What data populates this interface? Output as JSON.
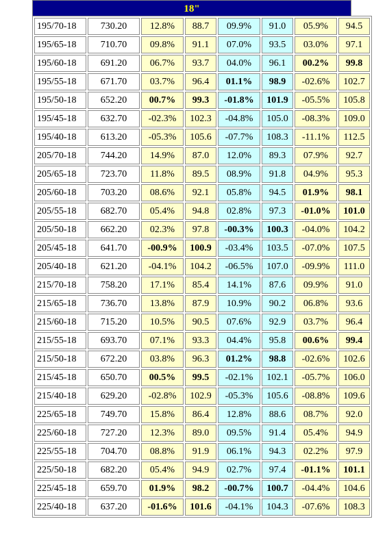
{
  "header": {
    "title": "18\""
  },
  "colors": {
    "title_bg": "#00008b",
    "title_fg": "#ffff00",
    "yellow": "#ffffcc",
    "cyan": "#ccffff",
    "highlight": "#cc0000"
  },
  "rows": [
    {
      "size": "195/70-18",
      "price": "730.20",
      "c1": "12.8%",
      "c2": "88.7",
      "c3": "09.9%",
      "c4": "91.0",
      "c5": "05.9%",
      "c6": "94.5",
      "hl": 0
    },
    {
      "size": "195/65-18",
      "price": "710.70",
      "c1": "09.8%",
      "c2": "91.1",
      "c3": "07.0%",
      "c4": "93.5",
      "c5": "03.0%",
      "c6": "97.1",
      "hl": 0
    },
    {
      "size": "195/60-18",
      "price": "691.20",
      "c1": "06.7%",
      "c2": "93.7",
      "c3": "04.0%",
      "c4": "96.1",
      "c5": "00.2%",
      "c6": "99.8",
      "hl": 3
    },
    {
      "size": "195/55-18",
      "price": "671.70",
      "c1": "03.7%",
      "c2": "96.4",
      "c3": "01.1%",
      "c4": "98.9",
      "c5": "-02.6%",
      "c6": "102.7",
      "hl": 2
    },
    {
      "size": "195/50-18",
      "price": "652.20",
      "c1": "00.7%",
      "c2": "99.3",
      "c3": "-01.8%",
      "c4": "101.9",
      "c5": "-05.5%",
      "c6": "105.8",
      "hl": 12
    },
    {
      "size": "195/45-18",
      "price": "632.70",
      "c1": "-02.3%",
      "c2": "102.3",
      "c3": "-04.8%",
      "c4": "105.0",
      "c5": "-08.3%",
      "c6": "109.0",
      "hl": 0
    },
    {
      "size": "195/40-18",
      "price": "613.20",
      "c1": "-05.3%",
      "c2": "105.6",
      "c3": "-07.7%",
      "c4": "108.3",
      "c5": "-11.1%",
      "c6": "112.5",
      "hl": 0
    },
    {
      "size": "205/70-18",
      "price": "744.20",
      "c1": "14.9%",
      "c2": "87.0",
      "c3": "12.0%",
      "c4": "89.3",
      "c5": "07.9%",
      "c6": "92.7",
      "hl": 0
    },
    {
      "size": "205/65-18",
      "price": "723.70",
      "c1": "11.8%",
      "c2": "89.5",
      "c3": "08.9%",
      "c4": "91.8",
      "c5": "04.9%",
      "c6": "95.3",
      "hl": 0
    },
    {
      "size": "205/60-18",
      "price": "703.20",
      "c1": "08.6%",
      "c2": "92.1",
      "c3": "05.8%",
      "c4": "94.5",
      "c5": "01.9%",
      "c6": "98.1",
      "hl": 3
    },
    {
      "size": "205/55-18",
      "price": "682.70",
      "c1": "05.4%",
      "c2": "94.8",
      "c3": "02.8%",
      "c4": "97.3",
      "c5": "-01.0%",
      "c6": "101.0",
      "hl": 3
    },
    {
      "size": "205/50-18",
      "price": "662.20",
      "c1": "02.3%",
      "c2": "97.8",
      "c3": "-00.3%",
      "c4": "100.3",
      "c5": "-04.0%",
      "c6": "104.2",
      "hl": 2
    },
    {
      "size": "205/45-18",
      "price": "641.70",
      "c1": "-00.9%",
      "c2": "100.9",
      "c3": "-03.4%",
      "c4": "103.5",
      "c5": "-07.0%",
      "c6": "107.5",
      "hl": 1
    },
    {
      "size": "205/40-18",
      "price": "621.20",
      "c1": "-04.1%",
      "c2": "104.2",
      "c3": "-06.5%",
      "c4": "107.0",
      "c5": "-09.9%",
      "c6": "111.0",
      "hl": 0
    },
    {
      "size": "215/70-18",
      "price": "758.20",
      "c1": "17.1%",
      "c2": "85.4",
      "c3": "14.1%",
      "c4": "87.6",
      "c5": "09.9%",
      "c6": "91.0",
      "hl": 0
    },
    {
      "size": "215/65-18",
      "price": "736.70",
      "c1": "13.8%",
      "c2": "87.9",
      "c3": "10.9%",
      "c4": "90.2",
      "c5": "06.8%",
      "c6": "93.6",
      "hl": 0
    },
    {
      "size": "215/60-18",
      "price": "715.20",
      "c1": "10.5%",
      "c2": "90.5",
      "c3": "07.6%",
      "c4": "92.9",
      "c5": "03.7%",
      "c6": "96.4",
      "hl": 0
    },
    {
      "size": "215/55-18",
      "price": "693.70",
      "c1": "07.1%",
      "c2": "93.3",
      "c3": "04.4%",
      "c4": "95.8",
      "c5": "00.6%",
      "c6": "99.4",
      "hl": 3
    },
    {
      "size": "215/50-18",
      "price": "672.20",
      "c1": "03.8%",
      "c2": "96.3",
      "c3": "01.2%",
      "c4": "98.8",
      "c5": "-02.6%",
      "c6": "102.6",
      "hl": 2
    },
    {
      "size": "215/45-18",
      "price": "650.70",
      "c1": "00.5%",
      "c2": "99.5",
      "c3": "-02.1%",
      "c4": "102.1",
      "c5": "-05.7%",
      "c6": "106.0",
      "hl": 1
    },
    {
      "size": "215/40-18",
      "price": "629.20",
      "c1": "-02.8%",
      "c2": "102.9",
      "c3": "-05.3%",
      "c4": "105.6",
      "c5": "-08.8%",
      "c6": "109.6",
      "hl": 0
    },
    {
      "size": "225/65-18",
      "price": "749.70",
      "c1": "15.8%",
      "c2": "86.4",
      "c3": "12.8%",
      "c4": "88.6",
      "c5": "08.7%",
      "c6": "92.0",
      "hl": 0
    },
    {
      "size": "225/60-18",
      "price": "727.20",
      "c1": "12.3%",
      "c2": "89.0",
      "c3": "09.5%",
      "c4": "91.4",
      "c5": "05.4%",
      "c6": "94.9",
      "hl": 0
    },
    {
      "size": "225/55-18",
      "price": "704.70",
      "c1": "08.8%",
      "c2": "91.9",
      "c3": "06.1%",
      "c4": "94.3",
      "c5": "02.2%",
      "c6": "97.9",
      "hl": 0
    },
    {
      "size": "225/50-18",
      "price": "682.20",
      "c1": "05.4%",
      "c2": "94.9",
      "c3": "02.7%",
      "c4": "97.4",
      "c5": "-01.1%",
      "c6": "101.1",
      "hl": 3
    },
    {
      "size": "225/45-18",
      "price": "659.70",
      "c1": "01.9%",
      "c2": "98.2",
      "c3": "-00.7%",
      "c4": "100.7",
      "c5": "-04.4%",
      "c6": "104.6",
      "hl": 12
    },
    {
      "size": "225/40-18",
      "price": "637.20",
      "c1": "-01.6%",
      "c2": "101.6",
      "c3": "-04.1%",
      "c4": "104.3",
      "c5": "-07.6%",
      "c6": "108.3",
      "hl": 1
    }
  ]
}
